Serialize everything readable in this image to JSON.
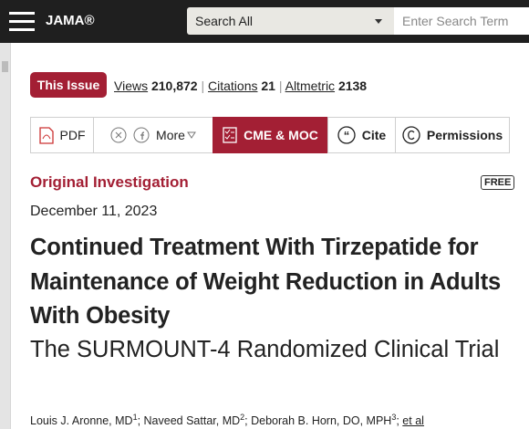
{
  "header": {
    "logo": "JAMA®",
    "search_scope": "Search All",
    "search_placeholder": "Enter Search Term"
  },
  "stats": {
    "issue_button": "This Issue",
    "views_label": "Views",
    "views": "210,872",
    "citations_label": "Citations",
    "citations": "21",
    "altmetric_label": "Altmetric",
    "altmetric": "2138"
  },
  "toolbar": {
    "pdf": "PDF",
    "more": "More",
    "cme": "CME & MOC",
    "cite": "Cite",
    "permissions": "Permissions"
  },
  "article": {
    "type": "Original Investigation",
    "badge": "FREE",
    "date": "December 11, 2023",
    "title": "Continued Treatment With Tirzepatide for Maintenance of Weight Reduction in Adults With Obesity",
    "subtitle": "The SURMOUNT-4 Randomized Clinical Trial",
    "authors": [
      {
        "name": "Louis J. Aronne, MD",
        "sup": "1"
      },
      {
        "name": "Naveed Sattar, MD",
        "sup": "2"
      },
      {
        "name": "Deborah B. Horn, DO, MPH",
        "sup": "3"
      }
    ],
    "et_al": "et al"
  }
}
